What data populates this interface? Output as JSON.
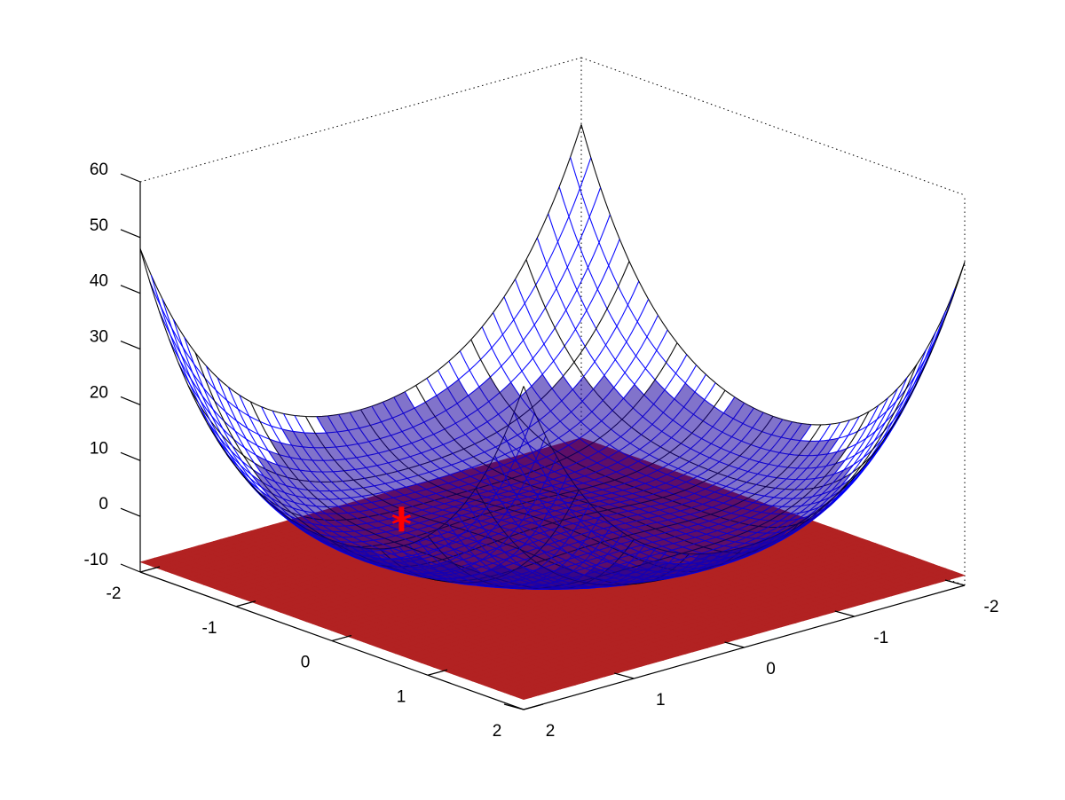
{
  "chart_data": {
    "type": "surface3d",
    "title": "",
    "xlabel": "",
    "ylabel": "",
    "zlabel": "",
    "xlim": [
      -2,
      2
    ],
    "ylim": [
      -2,
      2
    ],
    "zlim": [
      -10,
      60
    ],
    "x_ticks": [
      "-2",
      "-1",
      "0",
      "1",
      "2"
    ],
    "y_ticks": [
      "-2",
      "-1",
      "0",
      "1",
      "2"
    ],
    "z_ticks": [
      "-10",
      "0",
      "10",
      "20",
      "30",
      "40",
      "50",
      "60"
    ],
    "grid": false,
    "box": "dotted",
    "mesh_surface": {
      "formula": "z = (x^2 + y^2)^2 - 2(x^2 + y^2)",
      "grid": [
        -2,
        2,
        41
      ],
      "colors": [
        "#0000ff",
        "#000000"
      ]
    },
    "filled_surface": {
      "base_z": -8.2,
      "bump_center": [
        0.5,
        -1.0
      ],
      "bump_height": 5.5,
      "bump_radius": 0.45,
      "color": "#b22222"
    },
    "marker": {
      "x": 0.5,
      "y": -1.0,
      "z": -2.7,
      "color": "#ff0000"
    }
  }
}
